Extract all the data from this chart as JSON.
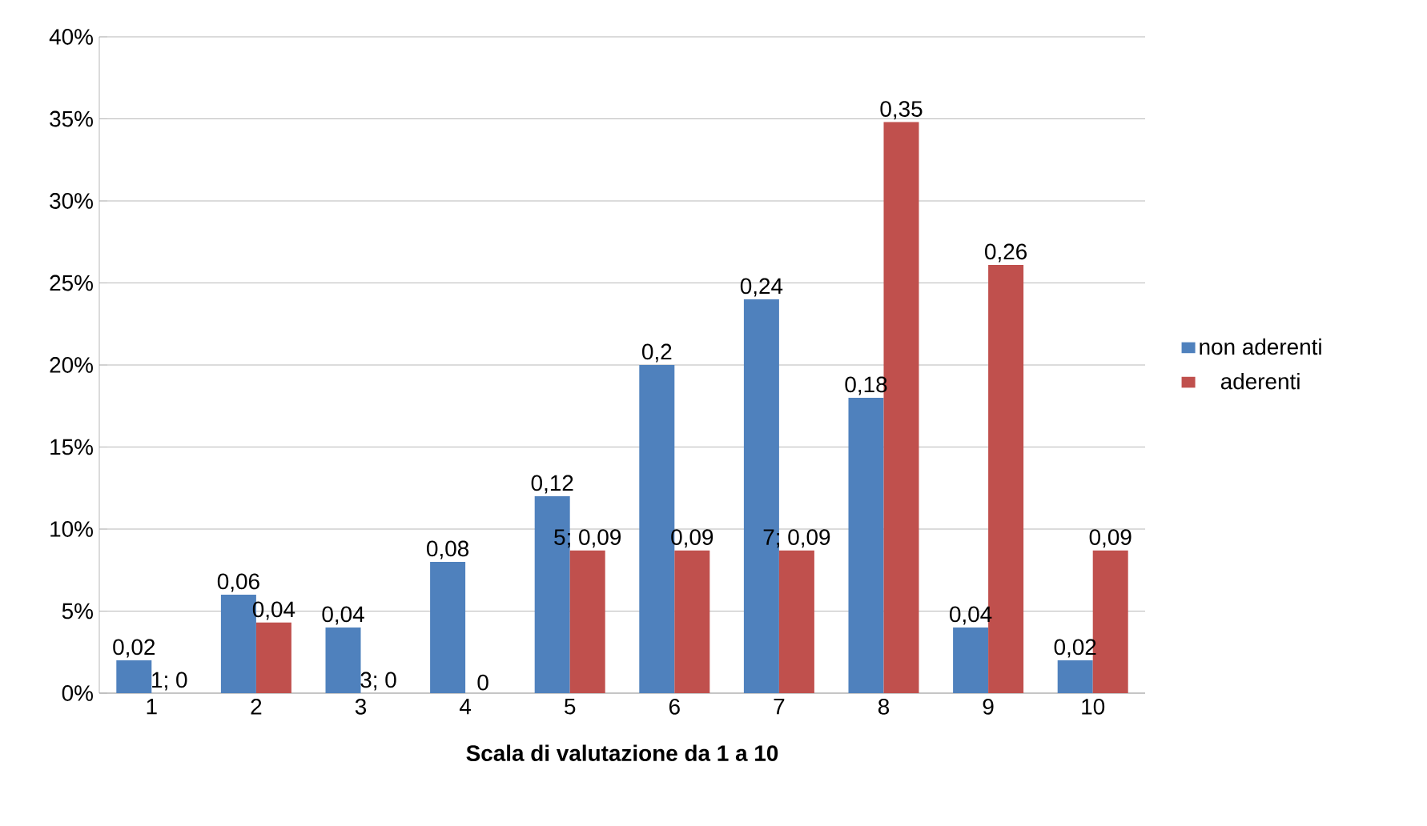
{
  "chart_data": {
    "type": "bar",
    "xlabel": "Scala di valutazione da 1 a 10",
    "categories": [
      "1",
      "2",
      "3",
      "4",
      "5",
      "6",
      "7",
      "8",
      "9",
      "10"
    ],
    "series": [
      {
        "name": "non aderenti",
        "color": "#4f81bd",
        "values": [
          0.02,
          0.06,
          0.04,
          0.08,
          0.12,
          0.2,
          0.24,
          0.18,
          0.04,
          0.02
        ],
        "value_labels": [
          "0,02",
          "0,06",
          "0,04",
          "0,08",
          "0,12",
          "0,2",
          "0,24",
          "0,18",
          "0,04",
          "0,02"
        ]
      },
      {
        "name": "aderenti",
        "color": "#c0504d",
        "values": [
          0,
          0.043,
          0,
          0,
          0.087,
          0.087,
          0.087,
          0.348,
          0.261,
          0.087
        ],
        "value_labels": [
          "1; 0",
          "0,04",
          "3; 0",
          "0",
          "5; 0,09",
          "0,09",
          "7; 0,09",
          "0,35",
          "0,26",
          "0,09"
        ]
      }
    ],
    "ylim": [
      0,
      0.4
    ],
    "yticks": [
      {
        "value": 0,
        "label": "0%"
      },
      {
        "value": 0.05,
        "label": "5%"
      },
      {
        "value": 0.1,
        "label": "10%"
      },
      {
        "value": 0.15,
        "label": "15%"
      },
      {
        "value": 0.2,
        "label": "20%"
      },
      {
        "value": 0.25,
        "label": "25%"
      },
      {
        "value": 0.3,
        "label": "30%"
      },
      {
        "value": 0.35,
        "label": "35%"
      },
      {
        "value": 0.4,
        "label": "40%"
      }
    ],
    "grid": "y",
    "legend": "right"
  }
}
